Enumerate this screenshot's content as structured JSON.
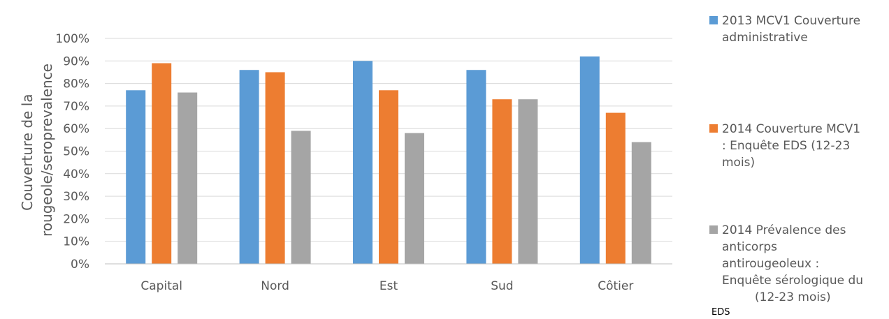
{
  "chart_data": {
    "type": "bar",
    "title": "",
    "ylabel": [
      "Couverture de la",
      "rougeole/seroprevalence"
    ],
    "xlabel": "",
    "ylim": [
      0,
      100
    ],
    "yticks": [
      "0%",
      "10%",
      "20%",
      "30%",
      "40%",
      "50%",
      "60%",
      "70%",
      "80%",
      "90%",
      "100%"
    ],
    "grid": true,
    "legend_position": "right",
    "categories": [
      "Capital",
      "Nord",
      "Est",
      "Sud",
      "Côtier"
    ],
    "series": [
      {
        "name": "2013 MCV1 Couverture administrative",
        "color": "#5B9BD5",
        "values": [
          77,
          86,
          90,
          86,
          92
        ]
      },
      {
        "name": "2014 Couverture MCV1 : Enquête EDS (12-23 mois)",
        "color": "#ED7D31",
        "values": [
          89,
          85,
          77,
          73,
          67
        ]
      },
      {
        "name": "2014 Prévalence des anticorps antirougeoleux : Enquête sérologique du (12-23 mois)",
        "color": "#A5A5A5",
        "values": [
          76,
          59,
          58,
          73,
          54
        ]
      }
    ]
  },
  "legend": {
    "items": [
      {
        "lines": [
          "2013 MCV1 Couverture",
          "administrative"
        ]
      },
      {
        "lines": [
          "2014 Couverture MCV1",
          ": Enquête EDS (12-23",
          "mois)"
        ]
      },
      {
        "lines": [
          "2014 Prévalence des",
          "anticorps",
          "antirougeoleux :",
          "Enquête sérologique du",
          "(12-23 mois)"
        ]
      }
    ],
    "note": "EDS"
  }
}
